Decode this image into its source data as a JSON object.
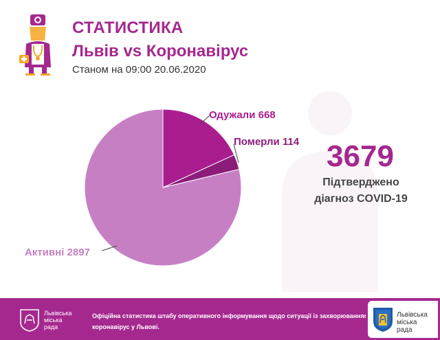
{
  "header": {
    "title": "СТАТИСТИКА",
    "subtitle": "Львів vs Коронавірус",
    "as_of": "Станом на 09:00 20.06.2020"
  },
  "colors": {
    "brand": "#a5288f",
    "recovered": "#a91d8f",
    "deaths": "#8c1c7a",
    "active": "#c77fc4"
  },
  "chart_data": {
    "type": "pie",
    "title": "",
    "slices": [
      {
        "label": "Одужали",
        "value": 668,
        "display": "Одужали 668",
        "color": "#a91d8f"
      },
      {
        "label": "Померли",
        "value": 114,
        "display": "Померли 114",
        "color": "#8c1c7a"
      },
      {
        "label": "Активні",
        "value": 2897,
        "display": "Активні 2897",
        "color": "#c77fc4"
      }
    ],
    "start_angle_deg": 0,
    "direction": "clockwise",
    "legend": "none"
  },
  "total": {
    "value": "3679",
    "label_line1": "Підтверджено",
    "label_line2": "діагноз COVID-19"
  },
  "footer": {
    "org_line1": "Львівська",
    "org_line2": "міська",
    "org_line3": "рада",
    "note_line1": "Офіційна статистика штабу оперативного інформування щодо ситуації із захворюванням на",
    "note_line2": "коронавірус у Львові.",
    "icons": [
      "lviv-lion-crest-icon",
      "lviv-coat-of-arms-icon"
    ]
  }
}
